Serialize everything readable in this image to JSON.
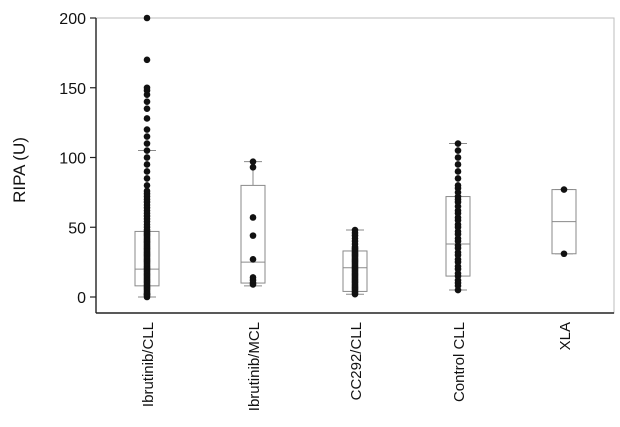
{
  "chart_data": {
    "type": "box",
    "ylabel": "RIPA (U)",
    "xlabel": "",
    "title": "",
    "ylim": [
      -12,
      200
    ],
    "yticks": [
      0,
      50,
      100,
      150,
      200
    ],
    "grid": false,
    "groups": [
      {
        "label": "Ibrutinib/CLL",
        "box": {
          "min": 0,
          "q1": 8,
          "median": 20,
          "q3": 47,
          "max": 105
        },
        "points": [
          0,
          1,
          2,
          2,
          3,
          4,
          5,
          6,
          7,
          8,
          9,
          10,
          11,
          12,
          13,
          14,
          15,
          16,
          17,
          18,
          19,
          20,
          21,
          22,
          23,
          24,
          25,
          26,
          27,
          28,
          29,
          30,
          31,
          32,
          33,
          34,
          35,
          36,
          37,
          38,
          39,
          40,
          41,
          42,
          43,
          44,
          45,
          46,
          47,
          48,
          50,
          52,
          54,
          56,
          58,
          60,
          62,
          64,
          66,
          68,
          70,
          72,
          74,
          76,
          80,
          85,
          90,
          95,
          100,
          105,
          110,
          115,
          120,
          128,
          135,
          140,
          145,
          148,
          150,
          170,
          200
        ]
      },
      {
        "label": "Ibrutinib/MCL",
        "box": {
          "min": 8,
          "q1": 10,
          "median": 25,
          "q3": 80,
          "max": 97
        },
        "points": [
          9,
          10,
          12,
          14,
          27,
          44,
          57,
          93,
          97
        ]
      },
      {
        "label": "CC292/CLL",
        "box": {
          "min": 2,
          "q1": 4,
          "median": 21,
          "q3": 33,
          "max": 48
        },
        "points": [
          2,
          3,
          4,
          5,
          6,
          7,
          8,
          9,
          10,
          11,
          12,
          13,
          14,
          15,
          16,
          17,
          18,
          19,
          20,
          21,
          22,
          23,
          24,
          25,
          26,
          27,
          28,
          29,
          30,
          31,
          32,
          33,
          34,
          35,
          36,
          38,
          40,
          42,
          44,
          46,
          48
        ]
      },
      {
        "label": "Control CLL",
        "box": {
          "min": 5,
          "q1": 15,
          "median": 38,
          "q3": 72,
          "max": 110
        },
        "points": [
          5,
          8,
          10,
          12,
          15,
          17,
          20,
          22,
          25,
          27,
          30,
          32,
          35,
          37,
          40,
          42,
          45,
          47,
          50,
          52,
          55,
          57,
          60,
          62,
          65,
          68,
          70,
          72,
          75,
          78,
          80,
          85,
          90,
          95,
          100,
          105,
          110
        ]
      },
      {
        "label": "XLA",
        "box": {
          "min": 31,
          "q1": 31,
          "median": 54,
          "q3": 77,
          "max": 77
        },
        "points": [
          31,
          77
        ]
      }
    ]
  }
}
